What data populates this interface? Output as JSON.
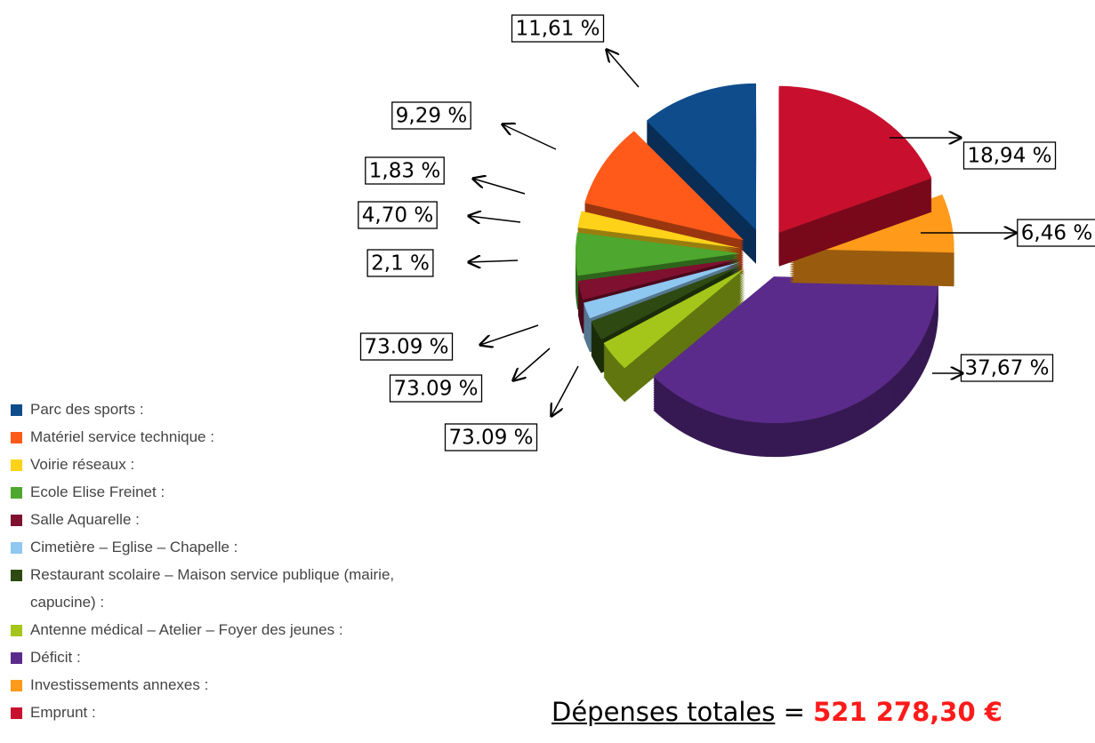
{
  "chart_data": {
    "type": "pie",
    "categories": [
      "Parc des sports :",
      "Matériel service technique :",
      "Voirie réseaux :",
      "Ecole Elise Freinet :",
      "Salle Aquarelle :",
      "Cimetière – Eglise – Chapelle :",
      "Restaurant scolaire – Maison service publique (mairie, capucine) :",
      "Antenne médical – Atelier – Foyer des jeunes :",
      "Déficit :",
      "Investissements annexes :",
      "Emprunt :"
    ],
    "values": [
      11.61,
      9.29,
      1.83,
      4.7,
      2.1,
      1.8,
      2.2,
      3.4,
      37.67,
      6.46,
      18.94
    ],
    "value_labels": [
      "11,61 %",
      "9,29 %",
      "1,83 %",
      "4,70 %",
      "2,1 %",
      null,
      null,
      null,
      "37,67 %",
      "6,46 %",
      "18,94 %"
    ],
    "annotations": [
      "73.09 %",
      "73.09 %",
      "73.09 %"
    ],
    "colors": [
      "#0f4c8c",
      "#ff5a1a",
      "#ffd21a",
      "#4ea72e",
      "#7f1030",
      "#8ec7f0",
      "#2e4a12",
      "#a4c51a",
      "#5a2b8a",
      "#ff9a1a",
      "#c8102e"
    ],
    "legend": "bottom-left"
  },
  "total": {
    "label": "Dépenses totales",
    "separator": "=",
    "amount": "521 278,30 €"
  }
}
